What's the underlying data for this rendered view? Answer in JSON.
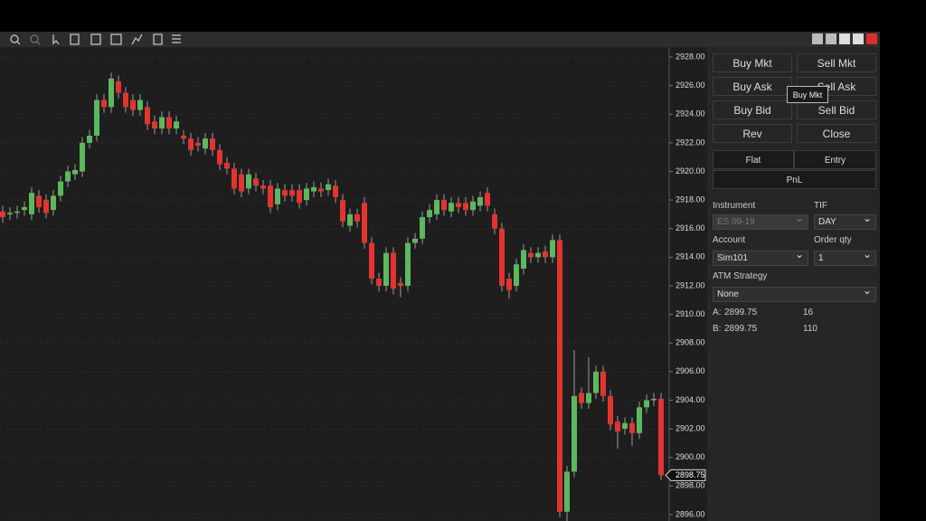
{
  "chart_data": {
    "type": "candlestick",
    "open": [
      2917.2,
      2917,
      2917.1,
      2917.3,
      2917,
      2918.3,
      2918,
      2917.3,
      2918.3,
      2919.3,
      2919.8,
      2920,
      2922,
      2922.5,
      2925,
      2924.5,
      2926.3,
      2925.5,
      2925,
      2924.3,
      2924.5,
      2923.5,
      2923,
      2923.8,
      2923,
      2922.5,
      2922.3,
      2922,
      2921.6,
      2922.3,
      2921.5,
      2920.6,
      2920.2,
      2919.8,
      2918.8,
      2919.5,
      2919,
      2919,
      2917.7,
      2918.7,
      2918.7,
      2918.7,
      2918,
      2918.6,
      2918.8,
      2918.7,
      2919,
      2918,
      2916.2,
      2917,
      2917.8,
      2915,
      2912.5,
      2912,
      2914.3,
      2912.2,
      2912,
      2915,
      2915.3,
      2916.8,
      2917,
      2918,
      2917.2,
      2917.8,
      2917.8,
      2917.3,
      2917.6,
      2918.5,
      2917,
      2916,
      2912.5,
      2912,
      2913.2,
      2914.3,
      2914,
      2914.4,
      2914,
      2915.2,
      2896.2,
      2899,
      2904.5,
      2903.8,
      2904.5,
      2906,
      2904.3,
      2902.5,
      2902,
      2902.4,
      2901.7,
      2903.5,
      2904,
      2904.1
    ],
    "high": [
      2917.6,
      2917.5,
      2917.6,
      2917.9,
      2918.9,
      2918.7,
      2918.4,
      2918.7,
      2919.7,
      2920.4,
      2920.5,
      2922.4,
      2922.9,
      2925.4,
      2925.4,
      2926.9,
      2926.7,
      2925.9,
      2925.4,
      2925.4,
      2924.9,
      2923.9,
      2924.2,
      2924.2,
      2923.9,
      2922.9,
      2922.7,
      2922.4,
      2922.7,
      2922.7,
      2921.9,
      2921,
      2920.6,
      2920.2,
      2920.2,
      2919.9,
      2919.4,
      2919.4,
      2919.2,
      2919.1,
      2919.1,
      2919.1,
      2919.2,
      2919.3,
      2919.2,
      2919.5,
      2919.4,
      2918.4,
      2917.4,
      2917.4,
      2918.2,
      2915.4,
      2912.9,
      2914.7,
      2914.7,
      2912.6,
      2915.4,
      2915.7,
      2917.2,
      2917.7,
      2918.4,
      2918.4,
      2918.2,
      2918.2,
      2918.2,
      2918.3,
      2918.6,
      2918.9,
      2917.4,
      2916.4,
      2912.9,
      2913.9,
      2914.9,
      2914.7,
      2914.7,
      2914.8,
      2915.6,
      2915.6,
      2899.4,
      2907.5,
      2904.9,
      2907,
      2906.4,
      2906.4,
      2904.7,
      2902.9,
      2902.8,
      2902.8,
      2903.9,
      2904.4,
      2904.5,
      2904.5
    ],
    "low": [
      2916.4,
      2916.6,
      2916.7,
      2916.9,
      2916.6,
      2917.1,
      2916.7,
      2916.9,
      2917.9,
      2918.9,
      2919.4,
      2919.6,
      2921.6,
      2922.1,
      2924.1,
      2924.1,
      2925.1,
      2924.1,
      2923.9,
      2923.9,
      2922.9,
      2922.6,
      2922.6,
      2922.6,
      2922.6,
      2921.9,
      2921.1,
      2921.4,
      2921.2,
      2921.1,
      2920.1,
      2919.8,
      2918.4,
      2918.2,
      2918.4,
      2918.6,
      2918.4,
      2917.1,
      2917.3,
      2917.9,
      2917.9,
      2917.4,
      2917.6,
      2918.2,
      2918.2,
      2918.3,
      2917.8,
      2916.1,
      2915.8,
      2916.1,
      2914.6,
      2912.1,
      2911.6,
      2911.6,
      2911.4,
      2911.2,
      2911.6,
      2914.6,
      2914.9,
      2916.4,
      2916.6,
      2916.9,
      2916.8,
      2917.1,
      2916.9,
      2916.9,
      2917.2,
      2917.2,
      2915.6,
      2911.6,
      2911.1,
      2911.6,
      2912.8,
      2913.6,
      2913.6,
      2913.6,
      2913.6,
      2895.8,
      2895.5,
      2898.6,
      2903.4,
      2903.4,
      2904.1,
      2903.9,
      2901.9,
      2900.6,
      2901.6,
      2900.8,
      2901.3,
      2903.1,
      2903.6,
      2898.4
    ],
    "close": [
      2916.8,
      2917.1,
      2917.2,
      2917.5,
      2918.5,
      2917.5,
      2917.1,
      2918.3,
      2919.3,
      2920,
      2920.1,
      2922,
      2922.5,
      2925,
      2924.5,
      2926.5,
      2925.5,
      2924.5,
      2924.3,
      2925,
      2923.3,
      2923,
      2923.8,
      2923,
      2923.5,
      2922.3,
      2921.5,
      2921.8,
      2922.3,
      2921.5,
      2920.5,
      2920.2,
      2918.8,
      2918.6,
      2919.8,
      2919,
      2918.8,
      2917.5,
      2918.8,
      2918.3,
      2918.3,
      2917.8,
      2918.8,
      2918.9,
      2918.6,
      2919.1,
      2918.2,
      2916.5,
      2917,
      2916.5,
      2915,
      2912.5,
      2912,
      2914.3,
      2911.8,
      2912,
      2915,
      2915.3,
      2916.8,
      2917.3,
      2918,
      2917.3,
      2917.8,
      2917.5,
      2917.3,
      2917.9,
      2918.2,
      2917.6,
      2916,
      2912,
      2911.7,
      2913.5,
      2914.5,
      2914,
      2914.3,
      2914,
      2915.2,
      2896.2,
      2899,
      2904.3,
      2903.8,
      2904.5,
      2906,
      2904.3,
      2902.3,
      2901.8,
      2902.4,
      2901.7,
      2903.5,
      2904,
      2904.1,
      2898.75
    ],
    "up_color": "#5cb85c",
    "down_color": "#e3342f",
    "ylim": [
      2895.55,
      2928.7
    ],
    "yticks": [
      {
        "value": 2928,
        "label": "2928.00"
      },
      {
        "value": 2926,
        "label": "2926.00"
      },
      {
        "value": 2924,
        "label": "2924.00"
      },
      {
        "value": 2922,
        "label": "2922.00"
      },
      {
        "value": 2920,
        "label": "2920.00"
      },
      {
        "value": 2918,
        "label": "2918.00"
      },
      {
        "value": 2916,
        "label": "2916.00"
      },
      {
        "value": 2914,
        "label": "2914.00"
      },
      {
        "value": 2912,
        "label": "2912.00"
      },
      {
        "value": 2910,
        "label": "2910.00"
      },
      {
        "value": 2908,
        "label": "2908.00"
      },
      {
        "value": 2906,
        "label": "2906.00"
      },
      {
        "value": 2904,
        "label": "2904.00"
      },
      {
        "value": 2902,
        "label": "2902.00"
      },
      {
        "value": 2900,
        "label": "2900.00"
      },
      {
        "value": 2898,
        "label": "2898.00"
      },
      {
        "value": 2896,
        "label": "2896.00"
      }
    ],
    "last_price": {
      "value": 2898.75,
      "label": "2898.75"
    },
    "grid": true
  },
  "panel": {
    "buttons": [
      [
        "Buy Mkt",
        "Sell Mkt"
      ],
      [
        "Buy Ask",
        "Sell Ask"
      ],
      [
        "Buy Bid",
        "Sell Bid"
      ],
      [
        "Rev",
        "Close"
      ]
    ],
    "flat": "Flat",
    "entry": "Entry",
    "pnl": "PnL",
    "instrument_label": "Instrument",
    "instrument": "ES 09-19",
    "tif_label": "TIF",
    "tif": "DAY",
    "account_label": "Account",
    "account": "Sim101",
    "qty_label": "Order qty",
    "qty": "1",
    "atm_label": "ATM Strategy",
    "atm": "None",
    "ask_label": "A:",
    "ask_price": "2899.75",
    "ask_size": "16",
    "bid_label": "B:",
    "bid_price": "2899.75",
    "bid_size": "110",
    "tooltip": "Buy Mkt"
  }
}
